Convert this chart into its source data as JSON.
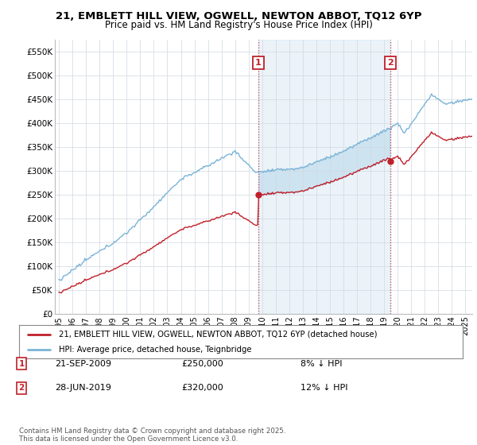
{
  "title_line1": "21, EMBLETT HILL VIEW, OGWELL, NEWTON ABBOT, TQ12 6YP",
  "title_line2": "Price paid vs. HM Land Registry's House Price Index (HPI)",
  "ylim": [
    0,
    575000
  ],
  "yticks": [
    0,
    50000,
    100000,
    150000,
    200000,
    250000,
    300000,
    350000,
    400000,
    450000,
    500000,
    550000
  ],
  "ytick_labels": [
    "£0",
    "£50K",
    "£100K",
    "£150K",
    "£200K",
    "£250K",
    "£300K",
    "£350K",
    "£400K",
    "£450K",
    "£500K",
    "£550K"
  ],
  "hpi_color": "#7ab4d8",
  "price_color": "#c0202a",
  "fill_color": "#d6e9f5",
  "marker1_x": 2009.72,
  "marker1_y": 250000,
  "marker2_x": 2019.48,
  "marker2_y": 320000,
  "legend_line1": "21, EMBLETT HILL VIEW, OGWELL, NEWTON ABBOT, TQ12 6YP (detached house)",
  "legend_line2": "HPI: Average price, detached house, Teignbridge",
  "marker1_date": "21-SEP-2009",
  "marker1_price": "£250,000",
  "marker1_note": "8% ↓ HPI",
  "marker2_date": "28-JUN-2019",
  "marker2_price": "£320,000",
  "marker2_note": "12% ↓ HPI",
  "footer": "Contains HM Land Registry data © Crown copyright and database right 2025.\nThis data is licensed under the Open Government Licence v3.0.",
  "background_color": "#ffffff",
  "grid_color": "#d0d8e0",
  "xmin": 1994.7,
  "xmax": 2025.5
}
